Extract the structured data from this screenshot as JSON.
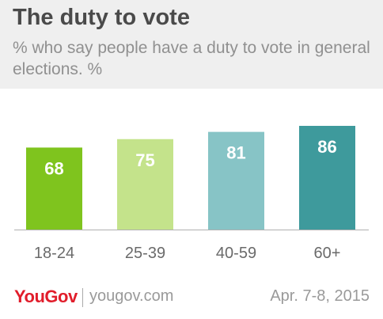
{
  "title": "The duty to vote",
  "subtitle": "% who say people have a duty to vote in general elections. %",
  "footer": {
    "logo_you": "You",
    "logo_gov": "Gov",
    "site": "yougov.com",
    "date": "Apr. 7-8, 2015"
  },
  "colors": {
    "bar_colors": [
      "#7fc41e",
      "#c4e38b",
      "#87c4c6",
      "#3e9a9c"
    ],
    "label_color": "#ffffff",
    "axis_color": "#b0b0b0",
    "tick_label_color": "#6a6a6a"
  },
  "chart_data": {
    "type": "bar",
    "categories": [
      "18-24",
      "25-39",
      "40-59",
      "60+"
    ],
    "values": [
      68,
      75,
      81,
      86
    ],
    "title": "The duty to vote",
    "subtitle": "% who say people have a duty to vote in general elections. %",
    "xlabel": "",
    "ylabel": "",
    "ylim": [
      0,
      86
    ],
    "grid": false,
    "legend": "none"
  }
}
